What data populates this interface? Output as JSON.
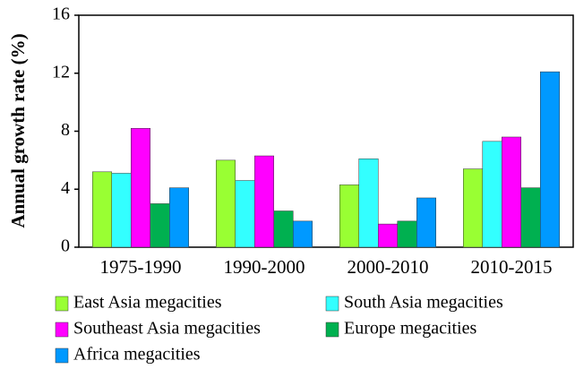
{
  "chart_data": {
    "type": "bar",
    "y_label": "Annual growth rate (%)",
    "categories": [
      "1975-1990",
      "1990-2000",
      "2000-2010",
      "2010-2015"
    ],
    "series": [
      {
        "name": "East Asia megacities",
        "color": "#99ff33",
        "values": [
          5.2,
          6.0,
          4.3,
          5.4
        ]
      },
      {
        "name": "South Asia megacities",
        "color": "#33ffff",
        "values": [
          5.1,
          4.6,
          6.1,
          7.3
        ]
      },
      {
        "name": "Southeast Asia megacities",
        "color": "#ff00ff",
        "values": [
          8.2,
          6.3,
          1.6,
          7.6
        ]
      },
      {
        "name": "Europe megacities",
        "color": "#00b050",
        "values": [
          3.0,
          2.5,
          1.8,
          4.1
        ]
      },
      {
        "name": "Africa megacities",
        "color": "#0099ff",
        "values": [
          4.1,
          1.8,
          3.4,
          12.1
        ]
      }
    ],
    "ylim": [
      0,
      16
    ],
    "yticks": [
      0,
      4,
      8,
      12,
      16
    ],
    "grid": false,
    "legend": "bottom"
  }
}
